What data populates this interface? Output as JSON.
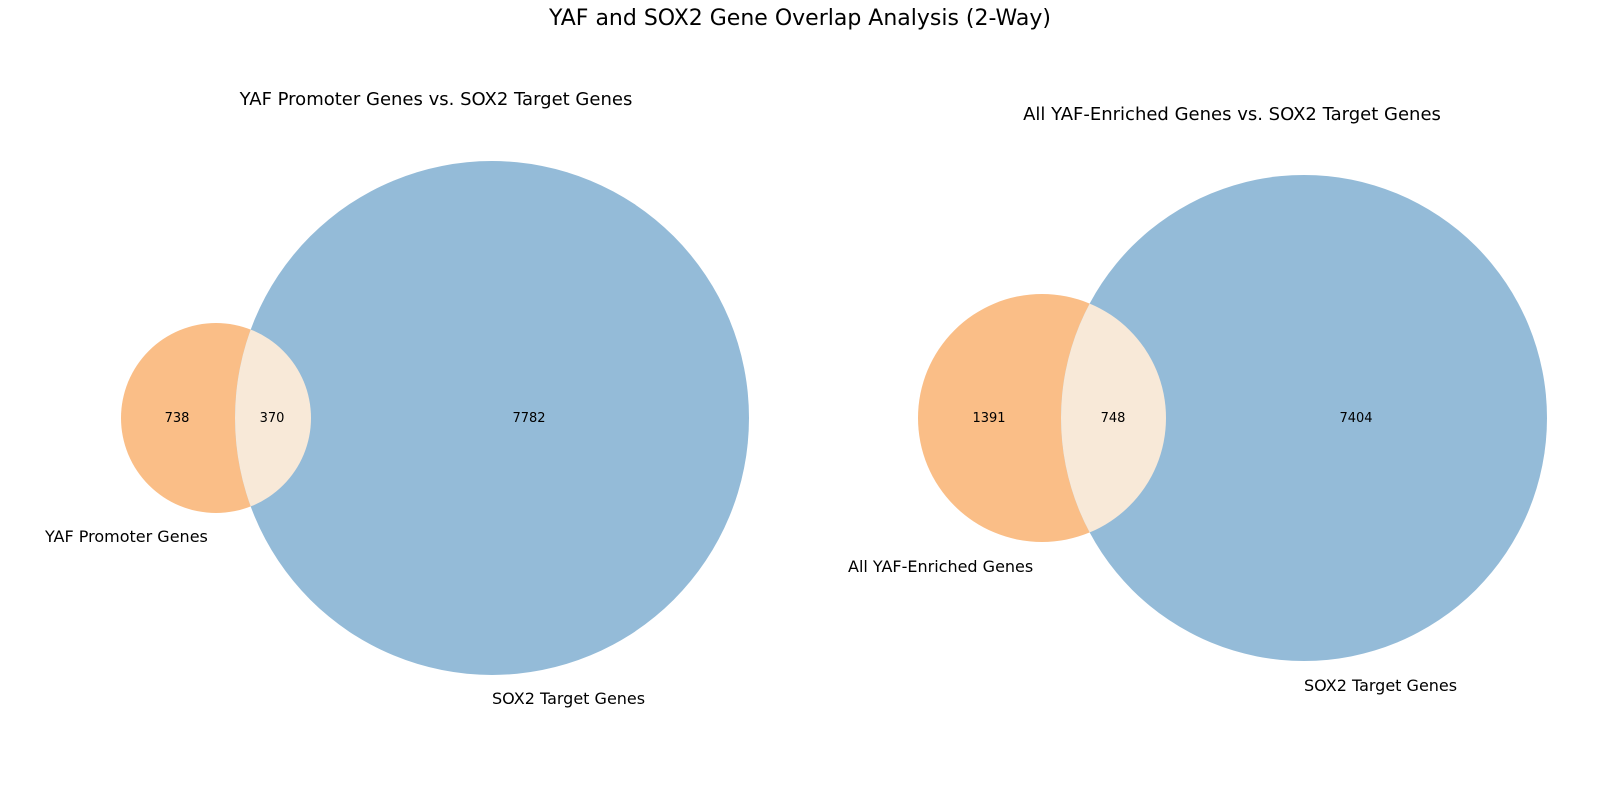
{
  "suptitle": "YAF and SOX2 Gene Overlap Analysis (2-Way)",
  "colors": {
    "set_a": "#fabe87",
    "set_b": "#94bbd8",
    "overlap": "#f8e9d8"
  },
  "chart_data": [
    {
      "type": "venn2",
      "title": "YAF Promoter Genes vs. SOX2 Target Genes",
      "set_labels": [
        "YAF Promoter Genes",
        "SOX2 Target Genes"
      ],
      "counts": {
        "a_only": 738,
        "overlap": 370,
        "b_only": 7782
      }
    },
    {
      "type": "venn2",
      "title": "All YAF-Enriched Genes vs. SOX2 Target Genes",
      "set_labels": [
        "All YAF-Enriched Genes",
        "SOX2 Target Genes"
      ],
      "counts": {
        "a_only": 1391,
        "overlap": 748,
        "b_only": 7404
      }
    }
  ]
}
